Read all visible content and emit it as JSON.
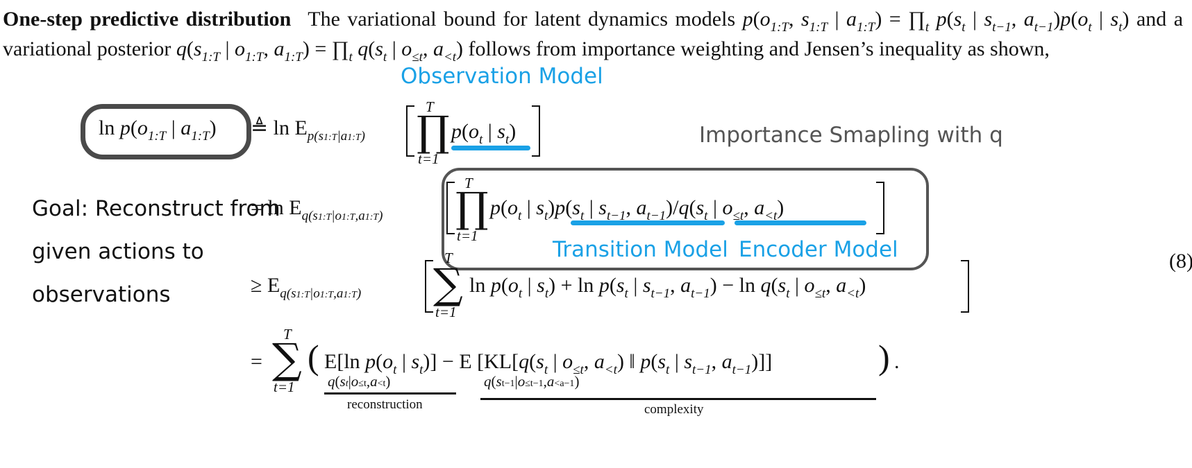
{
  "paragraph": {
    "heading": "One-step predictive distribution",
    "text_1": "The variational bound for latent dynamics models",
    "text_2": "and a variational posterior",
    "text_3": "follows from importance weighting and Jensen’s inequality as shown,"
  },
  "annotations": {
    "observation_model": "Observation Model",
    "importance_sampling": "Importance Smapling with q",
    "transition_model": "Transition Model",
    "encoder_model": "Encoder Model",
    "goal": "Goal: Reconstruct from given actions to observations"
  },
  "equation": {
    "number": "(8)",
    "label_reconstruction": "reconstruction",
    "label_complexity": "complexity"
  },
  "colors": {
    "annotation_blue": "#1aa1e6",
    "box_gray": "#4a4a4a"
  }
}
